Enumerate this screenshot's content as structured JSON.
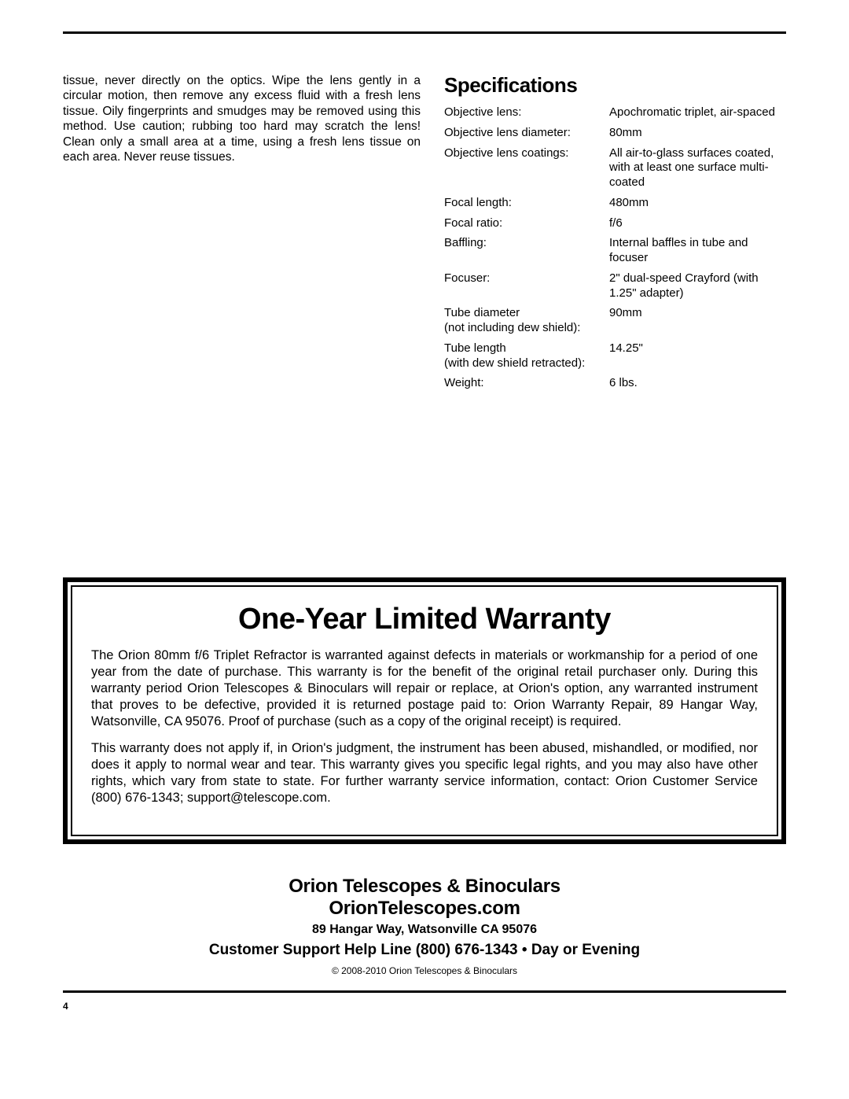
{
  "leftColumn": {
    "paragraph": "tissue, never directly on the optics. Wipe the lens gently in a circular motion, then remove any excess fluid with a fresh lens tissue. Oily fingerprints and smudges may be removed using this method. Use caution; rubbing too hard may scratch the lens! Clean only a small area at a time, using a fresh lens tissue on each area. Never reuse tissues."
  },
  "specs": {
    "heading": "Specifications",
    "rows": [
      {
        "label": "Objective lens:",
        "value": "Apochromatic triplet, air-spaced"
      },
      {
        "label": "Objective lens diameter:",
        "value": "80mm"
      },
      {
        "label": "Objective lens coatings:",
        "value": "All air-to-glass surfaces coated, with at least one surface multi-coated"
      },
      {
        "label": "Focal length:",
        "value": "480mm"
      },
      {
        "label": "Focal ratio:",
        "value": "f/6"
      },
      {
        "label": "Baffling:",
        "value": "Internal baffles in tube and focuser"
      },
      {
        "label": "Focuser:",
        "value": "2\" dual-speed Crayford (with 1.25\" adapter)"
      },
      {
        "label": "Tube diameter\n(not including dew shield):",
        "value": "90mm"
      },
      {
        "label": "Tube length\n(with dew shield retracted):",
        "value": "14.25\""
      },
      {
        "label": "Weight:",
        "value": "6 lbs."
      }
    ]
  },
  "warranty": {
    "title": "One-Year Limited Warranty",
    "para1": "The Orion 80mm f/6 Triplet Refractor is warranted against defects in materials or workmanship for a period of one year from the date of purchase. This warranty is for the benefit of the original retail purchaser only. During this warranty period Orion Telescopes & Binoculars will repair or replace, at Orion's option, any warranted instrument that proves to be defective, provided it is returned postage paid to: Orion Warranty Repair, 89 Hangar Way, Watsonville, CA 95076. Proof of purchase (such as a copy of the original receipt) is required.",
    "para2": "This warranty does not apply if, in Orion's judgment, the instrument has been abused, mishandled, or modified, nor does it apply to normal wear and tear. This warranty gives you specific legal rights, and you may also have other rights, which vary from state to state. For further warranty service information, contact: Orion Customer Service (800) 676-1343; support@telescope.com."
  },
  "footer": {
    "company": "Orion Telescopes & Binoculars",
    "website": "OrionTelescopes.com",
    "address": "89 Hangar Way, Watsonville CA 95076",
    "helpline": "Customer Support Help Line (800) 676-1343 • Day or Evening",
    "copyright": "© 2008-2010 Orion Telescopes & Binoculars"
  },
  "pageNumber": "4"
}
